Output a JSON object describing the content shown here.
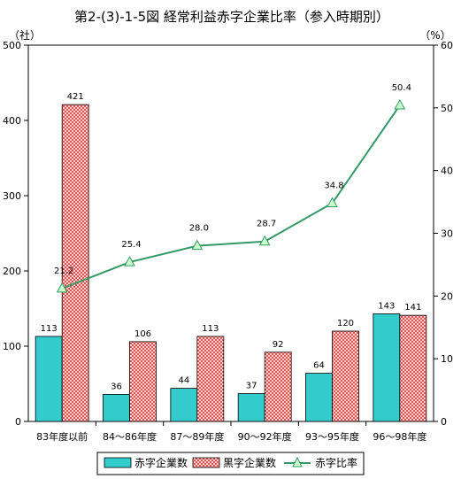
{
  "chart_data": {
    "type": "bar",
    "title": "第2-(3)-1-5図 経常利益赤字企業比率（参入時期別）",
    "y_left_unit": "（社）",
    "y_right_unit": "（%）",
    "categories": [
      "83年度以前",
      "84～86年度",
      "87～89年度",
      "90～92年度",
      "93～95年度",
      "96～98年度"
    ],
    "y_left_ticks": [
      "0",
      "100",
      "200",
      "300",
      "400",
      "500"
    ],
    "y_right_ticks": [
      "0",
      "10",
      "20",
      "30",
      "40",
      "50",
      "60"
    ],
    "ylim_left": [
      0,
      500
    ],
    "ylim_right": [
      0,
      60
    ],
    "grid": false,
    "legend_position": "bottom",
    "series": [
      {
        "name": "赤字企業数",
        "type": "bar",
        "axis": "left",
        "color": "#33cccc",
        "values": [
          113,
          36,
          44,
          37,
          64,
          143
        ],
        "labels": [
          "113",
          "36",
          "44",
          "37",
          "64",
          "143"
        ]
      },
      {
        "name": "黒字企業数",
        "type": "bar",
        "axis": "left",
        "color": "#ff0000",
        "pattern": "crosshatch",
        "values": [
          421,
          106,
          113,
          92,
          120,
          141
        ],
        "labels": [
          "421",
          "106",
          "113",
          "92",
          "120",
          "141"
        ]
      },
      {
        "name": "赤字比率",
        "type": "line",
        "axis": "right",
        "color": "#339966",
        "marker": "triangle",
        "values": [
          21.2,
          25.4,
          28.0,
          28.7,
          34.8,
          50.4
        ],
        "labels": [
          "21.2",
          "25.4",
          "28.0",
          "28.7",
          "34.8",
          "50.4"
        ]
      }
    ]
  }
}
